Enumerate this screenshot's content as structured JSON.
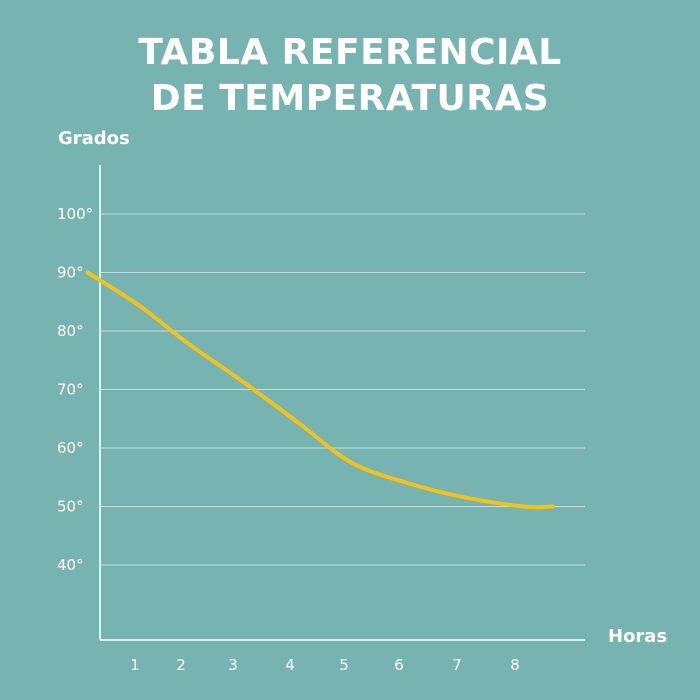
{
  "colors": {
    "background": "#77b3b1",
    "text": "#ffffff",
    "axis": "#d6f3ef",
    "grid": "#bfe1dd",
    "line": "#f2c21b"
  },
  "chart_data": {
    "type": "line",
    "title_line1": "TABLA REFERENCIAL",
    "title_line2": "DE TEMPERATURAS",
    "xlabel": "Horas",
    "ylabel": "Grados",
    "x_ticks": [
      "1",
      "2",
      "3",
      "4",
      "5",
      "6",
      "7",
      "8"
    ],
    "y_ticks": [
      "100°",
      "90°",
      "80°",
      "70°",
      "60°",
      "50°",
      "40°"
    ],
    "y_tick_values": [
      100,
      90,
      80,
      70,
      60,
      50,
      40
    ],
    "xlim": [
      0.4,
      9.2
    ],
    "ylim": [
      27,
      106
    ],
    "grid": "horizontal",
    "series": [
      {
        "x": [
          0.4,
          1.5,
          2.5,
          3.5,
          4.5,
          5.5,
          6.5,
          7.5,
          8.5,
          9.0
        ],
        "values": [
          90,
          84.5,
          78,
          71.5,
          64.5,
          57.5,
          54,
          51.5,
          50,
          50
        ]
      }
    ]
  }
}
